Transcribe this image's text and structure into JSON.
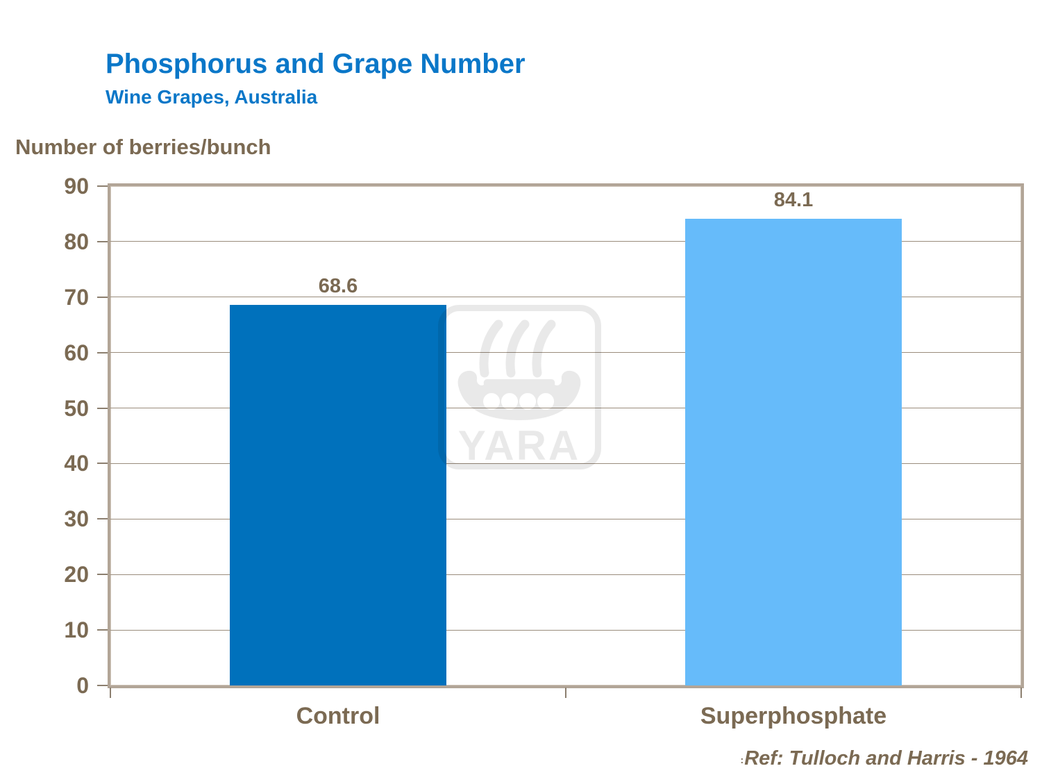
{
  "slide": {
    "reference_small_prefix": ":",
    "reference": "Ref: Tulloch and Harris - 1964",
    "watermark_text": "YARA"
  },
  "colors": {
    "title_blue": "#0a77c8",
    "text_brown": "#7b6a53",
    "plot_border_tan": "#b2a597",
    "gridline": "#9a8c7c",
    "bar_control": "#0071bc",
    "bar_superphosphate": "#66bbfa",
    "watermark_overlay": "rgba(0,0,0,0.085)",
    "background": "#ffffff"
  },
  "chart_data": {
    "type": "bar",
    "title": "Phosphorus and Grape Number",
    "subtitle": "Wine Grapes, Australia",
    "ylabel": "Number of berries/bunch",
    "xlabel": "",
    "categories": [
      "Control",
      "Superphosphate"
    ],
    "values": [
      68.6,
      84.1
    ],
    "data_labels": [
      "68.6",
      "84.1"
    ],
    "bar_colors": [
      "#0071bc",
      "#66bbfa"
    ],
    "ylim": [
      0,
      90
    ],
    "ytick_step": 10,
    "yticks": [
      0,
      10,
      20,
      30,
      40,
      50,
      60,
      70,
      80,
      90
    ],
    "grid": true,
    "legend": false,
    "annotations": [
      "Ref: Tulloch and Harris - 1964"
    ]
  }
}
